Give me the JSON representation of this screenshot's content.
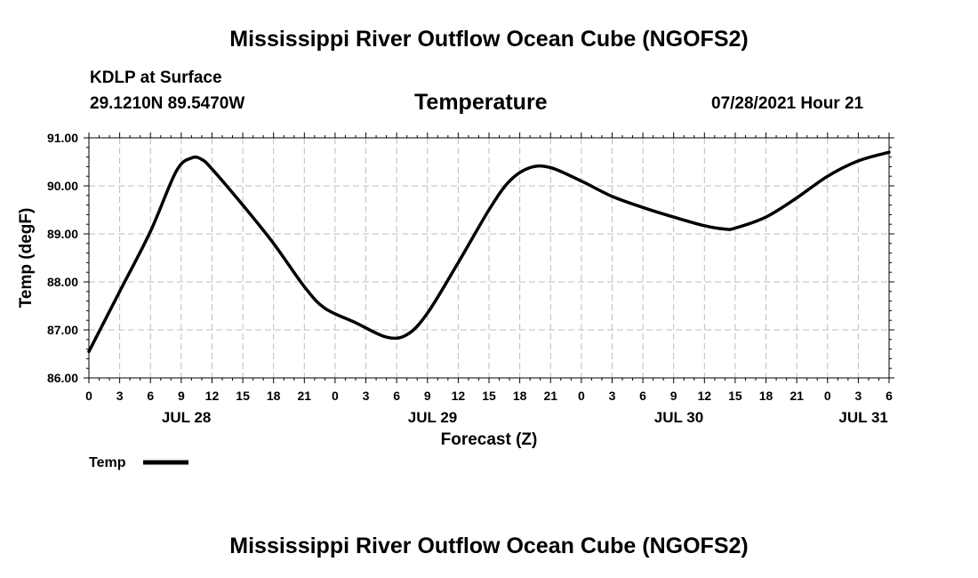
{
  "header": {
    "title": "Mississippi River Outflow Ocean Cube (NGOFS2)",
    "station": "KDLP at Surface",
    "coords": "29.1210N  89.5470W",
    "variable": "Temperature",
    "valid_time": "07/28/2021 Hour 21"
  },
  "legend": {
    "label": "Temp"
  },
  "footer": {
    "title": "Mississippi River Outflow Ocean Cube (NGOFS2)"
  },
  "chart_data": {
    "type": "line",
    "title": "Temperature",
    "xlabel": "Forecast (Z)",
    "ylabel": "Temp (degF)",
    "xlim": [
      0,
      78
    ],
    "ylim": [
      86.0,
      91.0
    ],
    "y_ticks": [
      "86.00",
      "87.00",
      "88.00",
      "89.00",
      "90.00",
      "91.00"
    ],
    "x_ticks": [
      "0",
      "3",
      "6",
      "9",
      "12",
      "15",
      "18",
      "21",
      "0",
      "3",
      "6",
      "9",
      "12",
      "15",
      "18",
      "21",
      "0",
      "3",
      "6",
      "9",
      "12",
      "15",
      "18",
      "21",
      "0",
      "3",
      "6"
    ],
    "date_labels": [
      {
        "label": "JUL 28",
        "hour": 9.5
      },
      {
        "label": "JUL 29",
        "hour": 33.5
      },
      {
        "label": "JUL 30",
        "hour": 57.5
      },
      {
        "label": "JUL 31",
        "hour": 75.5
      }
    ],
    "grid": true,
    "series": [
      {
        "name": "Temp",
        "color": "#000000",
        "x": [
          0,
          3,
          6,
          8.5,
          10,
          11,
          12,
          15,
          18,
          21,
          23,
          26,
          29,
          31,
          33,
          36,
          39,
          41,
          43,
          45,
          48,
          51,
          54,
          57,
          60,
          62,
          63,
          66,
          69,
          72,
          75,
          78
        ],
        "y": [
          86.55,
          87.8,
          89.05,
          90.3,
          90.58,
          90.55,
          90.35,
          89.6,
          88.8,
          87.9,
          87.45,
          87.15,
          86.85,
          86.9,
          87.35,
          88.4,
          89.5,
          90.1,
          90.38,
          90.38,
          90.1,
          89.78,
          89.55,
          89.35,
          89.17,
          89.1,
          89.12,
          89.35,
          89.75,
          90.2,
          90.52,
          90.7
        ]
      }
    ]
  }
}
